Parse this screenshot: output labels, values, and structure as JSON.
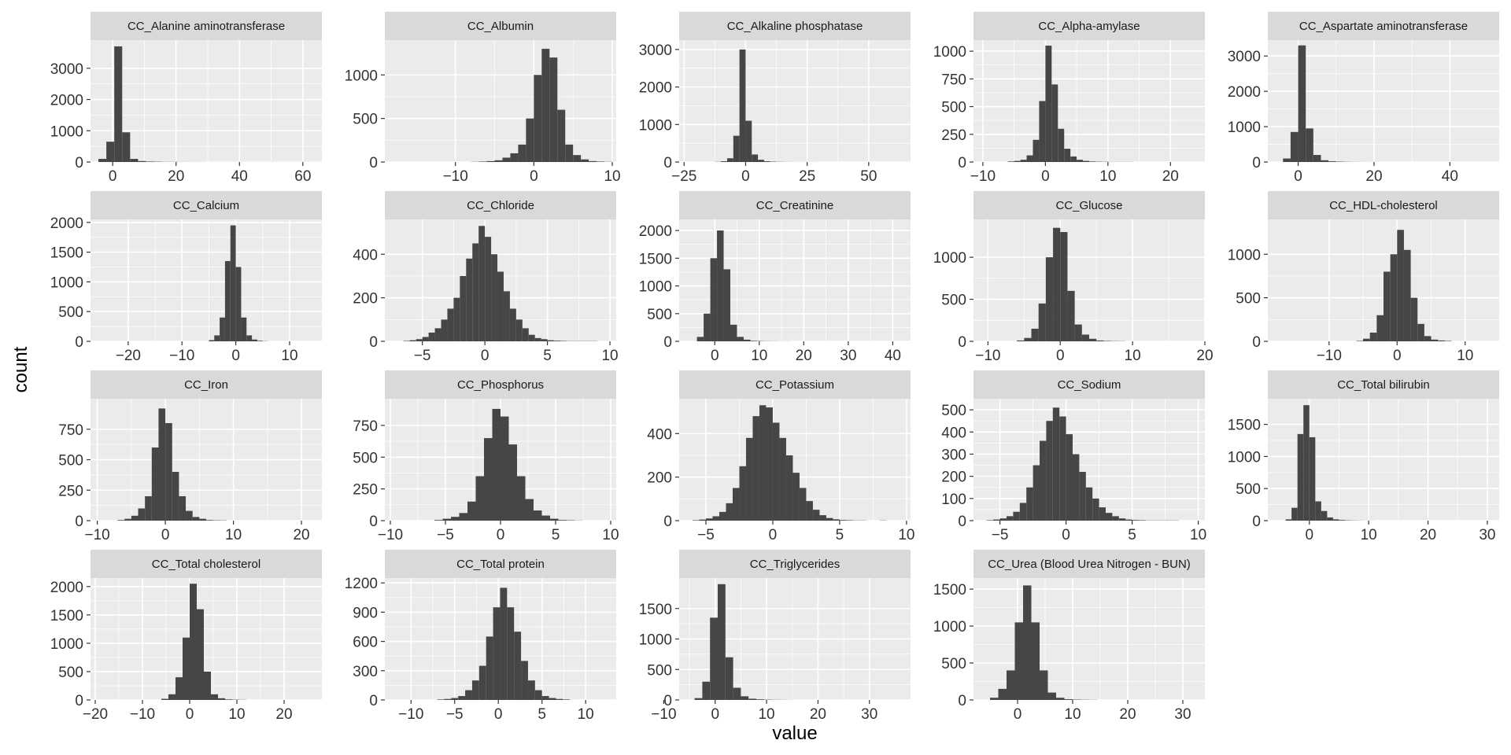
{
  "colors": {
    "panel_background": "#ebebeb",
    "grid_major": "#ffffff",
    "strip_background": "#d9d9d9",
    "bar_fill": "#464646",
    "tick_text": "#333333"
  },
  "chart_data": {
    "type": "histogram-facets",
    "xlabel": "value",
    "ylabel": "count",
    "grid": true,
    "facets": [
      {
        "name": "CC_Alanine aminotransferase",
        "xlim": [
          -7,
          66
        ],
        "xticks": [
          0,
          20,
          40,
          60
        ],
        "ylim": [
          0,
          3900
        ],
        "yticks": [
          0,
          1000,
          2000,
          3000
        ],
        "bin_start": -4.5,
        "bin_width": 2.5,
        "counts": [
          100,
          650,
          3700,
          950,
          100,
          30,
          15,
          10,
          5,
          5,
          3,
          2,
          2,
          1,
          1,
          1,
          1,
          1,
          1,
          1,
          1,
          1,
          1,
          1,
          1,
          1,
          1,
          1
        ]
      },
      {
        "name": "CC_Albumin",
        "xlim": [
          -19,
          10.5
        ],
        "xticks": [
          -10,
          0,
          10
        ],
        "ylim": [
          0,
          1400
        ],
        "yticks": [
          0,
          500,
          1000
        ],
        "bin_start": -8,
        "bin_width": 1,
        "counts": [
          2,
          5,
          10,
          20,
          50,
          100,
          200,
          500,
          1000,
          1300,
          1200,
          600,
          200,
          80,
          30,
          10,
          5,
          2
        ]
      },
      {
        "name": "CC_Alkaline phosphatase",
        "xlim": [
          -27,
          67
        ],
        "xticks": [
          -25,
          0,
          25,
          50
        ],
        "ylim": [
          0,
          3250
        ],
        "yticks": [
          0,
          1000,
          2000,
          3000
        ],
        "bin_start": -12.5,
        "bin_width": 2.5,
        "counts": [
          5,
          20,
          100,
          700,
          3000,
          1100,
          200,
          60,
          20,
          10,
          5,
          3,
          2,
          1,
          1,
          1,
          1
        ]
      },
      {
        "name": "CC_Alpha-amylase",
        "xlim": [
          -11.5,
          25.5
        ],
        "xticks": [
          -10,
          0,
          10,
          20
        ],
        "ylim": [
          0,
          1100
        ],
        "yticks": [
          0,
          250,
          500,
          750,
          1000
        ],
        "bin_start": -6,
        "bin_width": 1,
        "counts": [
          5,
          10,
          20,
          60,
          200,
          550,
          1050,
          700,
          300,
          120,
          50,
          20,
          10,
          5,
          3,
          2,
          1,
          1,
          1,
          1
        ]
      },
      {
        "name": "CC_Aspartate aminotransferase",
        "xlim": [
          -8,
          53
        ],
        "xticks": [
          0,
          20,
          40
        ],
        "ylim": [
          0,
          3450
        ],
        "yticks": [
          0,
          1000,
          2000,
          3000
        ],
        "bin_start": -4,
        "bin_width": 2,
        "counts": [
          100,
          850,
          3300,
          950,
          200,
          50,
          20,
          10,
          5,
          3,
          2,
          1,
          1
        ]
      },
      {
        "name": "CC_Calcium",
        "xlim": [
          -27,
          16
        ],
        "xticks": [
          -20,
          -10,
          0,
          10
        ],
        "ylim": [
          0,
          2050
        ],
        "yticks": [
          0,
          500,
          1000,
          1500,
          2000
        ],
        "bin_start": -5,
        "bin_width": 1,
        "counts": [
          20,
          100,
          400,
          1350,
          1950,
          1250,
          400,
          100,
          30,
          10,
          3
        ]
      },
      {
        "name": "CC_Chloride",
        "xlim": [
          -8,
          10.5
        ],
        "xticks": [
          -5,
          0,
          5,
          10
        ],
        "ylim": [
          0,
          560
        ],
        "yticks": [
          0,
          200,
          400
        ],
        "bin_start": -6.5,
        "bin_width": 0.5,
        "counts": [
          2,
          5,
          10,
          20,
          40,
          60,
          100,
          150,
          200,
          300,
          380,
          450,
          530,
          480,
          400,
          320,
          230,
          150,
          100,
          60,
          30,
          15,
          10,
          5,
          3,
          2,
          1,
          1,
          1,
          1,
          1
        ]
      },
      {
        "name": "CC_Creatinine",
        "xlim": [
          -8,
          44
        ],
        "xticks": [
          0,
          10,
          20,
          30,
          40
        ],
        "ylim": [
          0,
          2200
        ],
        "yticks": [
          0,
          500,
          1000,
          1500,
          2000
        ],
        "bin_start": -4,
        "bin_width": 1.5,
        "counts": [
          80,
          500,
          1500,
          2000,
          1300,
          300,
          80,
          30,
          10,
          5,
          3,
          2,
          1,
          1
        ]
      },
      {
        "name": "CC_Glucose",
        "xlim": [
          -12,
          20
        ],
        "xticks": [
          -10,
          0,
          10,
          20
        ],
        "ylim": [
          0,
          1450
        ],
        "yticks": [
          0,
          500,
          1000
        ],
        "bin_start": -6,
        "bin_width": 1,
        "counts": [
          10,
          40,
          150,
          450,
          1000,
          1350,
          1300,
          600,
          200,
          80,
          30,
          10,
          5,
          3,
          2
        ]
      },
      {
        "name": "CC_HDL-cholesterol",
        "xlim": [
          -19,
          15
        ],
        "xticks": [
          -10,
          0,
          10
        ],
        "ylim": [
          0,
          1400
        ],
        "yticks": [
          0,
          500,
          1000
        ],
        "bin_start": -6,
        "bin_width": 1,
        "counts": [
          5,
          30,
          100,
          300,
          800,
          1000,
          1280,
          1050,
          500,
          200,
          60,
          20,
          10,
          5
        ]
      },
      {
        "name": "CC_Iron",
        "xlim": [
          -11,
          23
        ],
        "xticks": [
          -10,
          0,
          10,
          20
        ],
        "ylim": [
          0,
          1000
        ],
        "yticks": [
          0,
          250,
          500,
          750
        ],
        "bin_start": -7,
        "bin_width": 1,
        "counts": [
          5,
          15,
          40,
          100,
          200,
          600,
          920,
          800,
          400,
          200,
          80,
          30,
          15,
          5,
          3,
          2
        ]
      },
      {
        "name": "CC_Phosphorus",
        "xlim": [
          -10.5,
          10.5
        ],
        "xticks": [
          -10,
          -5,
          0,
          5,
          10
        ],
        "ylim": [
          0,
          960
        ],
        "yticks": [
          0,
          250,
          500,
          750
        ],
        "bin_start": -6,
        "bin_width": 0.75,
        "counts": [
          5,
          15,
          30,
          60,
          150,
          350,
          650,
          880,
          820,
          600,
          350,
          170,
          80,
          40,
          15,
          5,
          3,
          1
        ]
      },
      {
        "name": "CC_Potassium",
        "xlim": [
          -7,
          10.3
        ],
        "xticks": [
          -5,
          0,
          5,
          10
        ],
        "ylim": [
          0,
          560
        ],
        "yticks": [
          0,
          200,
          400
        ],
        "bin_start": -6,
        "bin_width": 0.5,
        "counts": [
          2,
          5,
          10,
          20,
          40,
          80,
          150,
          250,
          380,
          480,
          530,
          520,
          450,
          380,
          300,
          220,
          150,
          90,
          50,
          25,
          12,
          6,
          3,
          2,
          1,
          1,
          0,
          0,
          1
        ]
      },
      {
        "name": "CC_Sodium",
        "xlim": [
          -7,
          10.5
        ],
        "xticks": [
          -5,
          0,
          5,
          10
        ],
        "ylim": [
          0,
          550
        ],
        "yticks": [
          0,
          100,
          200,
          300,
          400,
          500
        ],
        "bin_start": -6,
        "bin_width": 0.5,
        "counts": [
          2,
          5,
          10,
          20,
          40,
          80,
          150,
          250,
          360,
          450,
          510,
          470,
          390,
          300,
          220,
          150,
          100,
          60,
          35,
          20,
          10,
          5,
          3,
          2,
          1,
          1,
          1,
          1,
          1
        ]
      },
      {
        "name": "CC_Total bilirubin",
        "xlim": [
          -7,
          32
        ],
        "xticks": [
          0,
          10,
          20,
          30
        ],
        "ylim": [
          0,
          1900
        ],
        "yticks": [
          0,
          500,
          1000,
          1500
        ],
        "bin_start": -4,
        "bin_width": 1,
        "counts": [
          20,
          200,
          1350,
          1800,
          1300,
          300,
          150,
          50,
          20,
          10,
          5,
          3,
          2,
          1,
          1
        ]
      },
      {
        "name": "CC_Total cholesterol",
        "xlim": [
          -21,
          28
        ],
        "xticks": [
          -20,
          -10,
          0,
          10,
          20
        ],
        "ylim": [
          0,
          2150
        ],
        "yticks": [
          0,
          500,
          1000,
          1500,
          2000
        ],
        "bin_start": -6,
        "bin_width": 1.5,
        "counts": [
          20,
          100,
          400,
          1100,
          2050,
          1600,
          500,
          100,
          30,
          10,
          5,
          3
        ]
      },
      {
        "name": "CC_Total protein",
        "xlim": [
          -13,
          13.5
        ],
        "xticks": [
          -10,
          -5,
          0,
          5,
          10
        ],
        "ylim": [
          0,
          1250
        ],
        "yticks": [
          0,
          300,
          600,
          900,
          1200
        ],
        "bin_start": -7,
        "bin_width": 0.8,
        "counts": [
          5,
          10,
          20,
          40,
          100,
          200,
          350,
          650,
          950,
          1150,
          950,
          700,
          400,
          200,
          100,
          40,
          20,
          10,
          5
        ]
      },
      {
        "name": "CC_Triglycerides",
        "xlim": [
          -7,
          38
        ],
        "xticks": [
          -10,
          0,
          10,
          20,
          30
        ],
        "ylim": [
          0,
          2000
        ],
        "yticks": [
          0,
          500,
          1000,
          1500
        ],
        "bin_start": -4,
        "bin_width": 1.5,
        "counts": [
          30,
          300,
          1350,
          1900,
          700,
          200,
          60,
          20,
          10,
          5,
          3,
          2,
          1
        ]
      },
      {
        "name": "CC_Urea (Blood Urea Nitrogen - BUN)",
        "xlim": [
          -8,
          34
        ],
        "xticks": [
          0,
          10,
          20,
          30
        ],
        "ylim": [
          0,
          1650
        ],
        "yticks": [
          0,
          500,
          1000,
          1500
        ],
        "bin_start": -5,
        "bin_width": 1.5,
        "counts": [
          30,
          150,
          400,
          1050,
          1550,
          1050,
          400,
          100,
          30,
          10,
          5,
          3,
          2
        ]
      }
    ]
  }
}
